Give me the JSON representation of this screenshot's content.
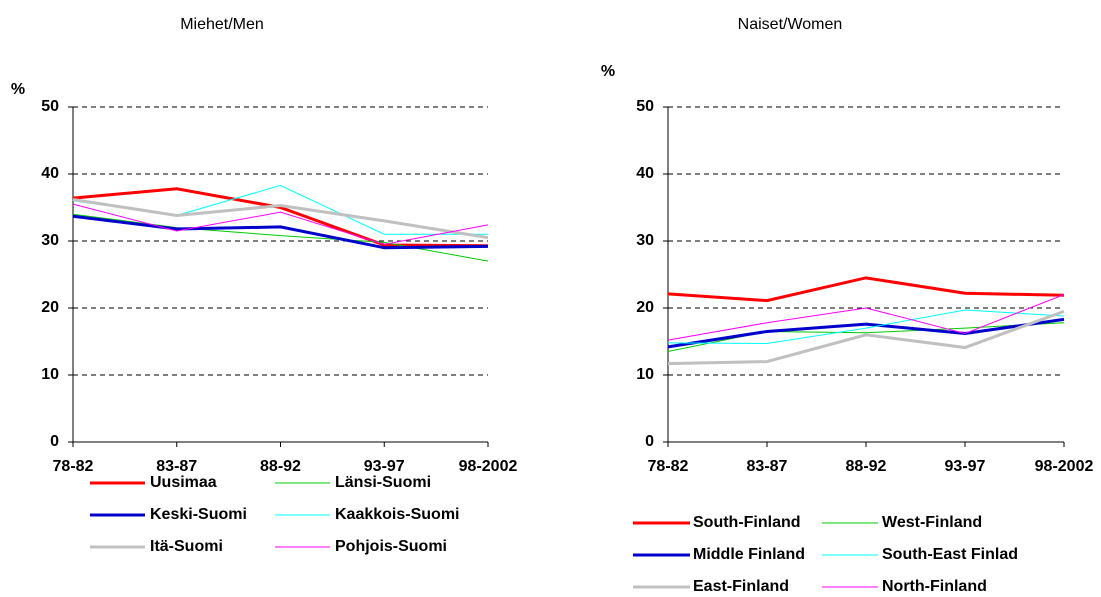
{
  "chart_data": [
    {
      "type": "line",
      "title": "Miehet/Men",
      "ylabel": "%",
      "categories": [
        "78-82",
        "83-87",
        "88-92",
        "93-97",
        "98-2002"
      ],
      "ylim": [
        0,
        50
      ],
      "yticks": [
        0,
        10,
        20,
        30,
        40,
        50
      ],
      "grid": true,
      "series": [
        {
          "name": "Uusimaa",
          "color": "#ff0000",
          "linewidth": 3,
          "values": [
            36.4,
            37.8,
            35,
            29.4,
            29.3
          ]
        },
        {
          "name": "Länsi-Suomi",
          "color": "#00cc00",
          "linewidth": 1,
          "values": [
            34,
            32,
            30.8,
            29.8,
            27
          ]
        },
        {
          "name": "Keski-Suomi",
          "color": "#0000cc",
          "linewidth": 3,
          "values": [
            33.7,
            31.8,
            32.1,
            29,
            29.2
          ]
        },
        {
          "name": "Kaakkois-Suomi",
          "color": "#00ffff",
          "linewidth": 1,
          "values": [
            36,
            33.8,
            38.3,
            31,
            31
          ]
        },
        {
          "name": "Itä-Suomi",
          "color": "#c0c0c0",
          "linewidth": 3,
          "values": [
            36.2,
            33.8,
            35.3,
            33,
            30.5
          ]
        },
        {
          "name": "Pohjois-Suomi",
          "color": "#ff00ff",
          "linewidth": 1,
          "values": [
            35.5,
            31.5,
            34.3,
            29.5,
            32.4
          ]
        }
      ]
    },
    {
      "type": "line",
      "title": "Naiset/Women",
      "ylabel": "%",
      "categories": [
        "78-82",
        "83-87",
        "88-92",
        "93-97",
        "98-2002"
      ],
      "ylim": [
        0,
        50
      ],
      "yticks": [
        0,
        10,
        20,
        30,
        40,
        50
      ],
      "grid": true,
      "series": [
        {
          "name": "South-Finland",
          "color": "#ff0000",
          "linewidth": 3,
          "values": [
            22.1,
            21.1,
            24.5,
            22.2,
            21.9
          ]
        },
        {
          "name": "West-Finland",
          "color": "#00cc00",
          "linewidth": 1,
          "values": [
            13.5,
            16.5,
            16.3,
            17,
            17.8
          ]
        },
        {
          "name": "Middle Finland",
          "color": "#0000cc",
          "linewidth": 3,
          "values": [
            14.2,
            16.5,
            17.6,
            16.2,
            18.3
          ]
        },
        {
          "name": "South-East Finlad",
          "color": "#00ffff",
          "linewidth": 1,
          "values": [
            14.8,
            14.7,
            17,
            19.7,
            18.8
          ]
        },
        {
          "name": "East-Finland",
          "color": "#c0c0c0",
          "linewidth": 3,
          "values": [
            11.7,
            12,
            16,
            14.1,
            19.5
          ]
        },
        {
          "name": "North-Finland",
          "color": "#ff00ff",
          "linewidth": 1,
          "values": [
            15.2,
            17.8,
            20,
            16.2,
            22
          ]
        }
      ]
    }
  ]
}
